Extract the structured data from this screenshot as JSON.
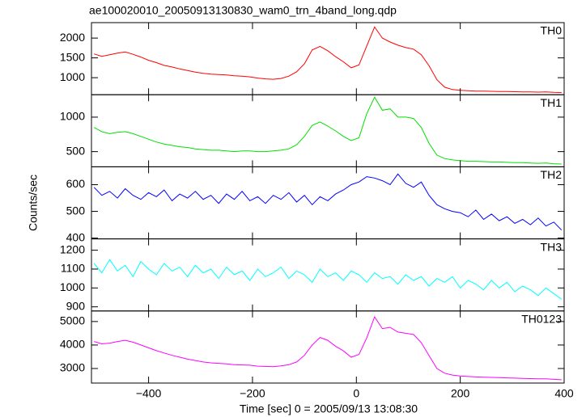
{
  "chart_data": {
    "type": "line",
    "title": "ae100020010_20050913130830_wam0_trn_4band_long.qdp",
    "xlabel": "Time [sec] 0 = 2005/09/13 13:08:30",
    "ylabel": "Counts/sec",
    "xlim": [
      -510,
      400
    ],
    "xticks": [
      {
        "value": -400,
        "label": "−400"
      },
      {
        "value": -200,
        "label": "−200"
      },
      0,
      200,
      400
    ],
    "x": [
      -505,
      -490,
      -475,
      -460,
      -445,
      -430,
      -415,
      -400,
      -385,
      -370,
      -355,
      -340,
      -325,
      -310,
      -295,
      -280,
      -265,
      -250,
      -235,
      -220,
      -205,
      -190,
      -175,
      -160,
      -145,
      -130,
      -115,
      -100,
      -85,
      -70,
      -55,
      -40,
      -25,
      -10,
      5,
      20,
      35,
      50,
      65,
      80,
      95,
      110,
      125,
      140,
      155,
      170,
      185,
      200,
      215,
      230,
      245,
      260,
      275,
      290,
      305,
      320,
      335,
      350,
      365,
      380,
      395
    ],
    "series": [
      {
        "name": "TH0",
        "color": "#ff0000",
        "ylim": [
          570,
          2390
        ],
        "yticks": [
          1000,
          1500,
          2000
        ],
        "values": [
          1600,
          1540,
          1580,
          1620,
          1650,
          1590,
          1520,
          1440,
          1380,
          1310,
          1270,
          1220,
          1180,
          1140,
          1110,
          1090,
          1080,
          1070,
          1050,
          1040,
          1020,
          990,
          970,
          960,
          980,
          1040,
          1150,
          1350,
          1700,
          1790,
          1680,
          1530,
          1400,
          1250,
          1320,
          1800,
          2280,
          2000,
          1900,
          1820,
          1760,
          1720,
          1580,
          1300,
          950,
          760,
          700,
          680,
          670,
          660,
          660,
          655,
          650,
          650,
          645,
          640,
          640,
          635,
          640,
          630,
          625
        ]
      },
      {
        "name": "TH1",
        "color": "#00e000",
        "ylim": [
          280,
          1325
        ],
        "yticks": [
          500,
          1000
        ],
        "values": [
          850,
          790,
          760,
          780,
          790,
          760,
          720,
          680,
          640,
          610,
          590,
          570,
          560,
          540,
          530,
          520,
          520,
          510,
          500,
          510,
          510,
          500,
          500,
          510,
          520,
          540,
          600,
          720,
          880,
          930,
          870,
          800,
          720,
          660,
          700,
          1050,
          1290,
          1100,
          1120,
          1000,
          1000,
          980,
          850,
          620,
          450,
          400,
          380,
          370,
          360,
          360,
          355,
          350,
          350,
          345,
          340,
          340,
          335,
          330,
          335,
          325,
          320
        ]
      },
      {
        "name": "TH2",
        "color": "#0000ff",
        "ylim": [
          397,
          667
        ],
        "yticks": [
          400,
          500,
          600
        ],
        "values": [
          590,
          560,
          575,
          550,
          585,
          560,
          545,
          570,
          555,
          580,
          540,
          565,
          550,
          575,
          545,
          560,
          530,
          565,
          545,
          575,
          540,
          555,
          530,
          560,
          545,
          570,
          535,
          560,
          525,
          555,
          540,
          565,
          580,
          600,
          610,
          630,
          625,
          615,
          600,
          640,
          605,
          590,
          610,
          560,
          525,
          510,
          500,
          495,
          480,
          505,
          470,
          490,
          465,
          480,
          455,
          470,
          450,
          475,
          445,
          460,
          430
        ]
      },
      {
        "name": "TH3",
        "color": "#00ffff",
        "ylim": [
          878,
          1260
        ],
        "yticks": [
          900,
          1000,
          1100,
          1200
        ],
        "values": [
          1130,
          1080,
          1150,
          1090,
          1120,
          1060,
          1140,
          1100,
          1070,
          1130,
          1090,
          1110,
          1060,
          1120,
          1080,
          1100,
          1050,
          1110,
          1070,
          1090,
          1040,
          1100,
          1060,
          1080,
          1110,
          1050,
          1090,
          1070,
          1030,
          1100,
          1060,
          1080,
          1040,
          1090,
          1070,
          1030,
          1080,
          1050,
          1060,
          1020,
          1070,
          1040,
          1060,
          1010,
          1050,
          1030,
          1060,
          1000,
          1040,
          1020,
          990,
          1040,
          1000,
          1030,
          980,
          1010,
          990,
          960,
          1000,
          970,
          940
        ]
      },
      {
        "name": "TH0123",
        "color": "#ff00ff",
        "ylim": [
          2380,
          5450
        ],
        "yticks": [
          3000,
          4000,
          5000
        ],
        "values": [
          4150,
          4050,
          4080,
          4150,
          4200,
          4120,
          4000,
          3880,
          3760,
          3660,
          3560,
          3480,
          3400,
          3340,
          3280,
          3240,
          3220,
          3200,
          3160,
          3150,
          3140,
          3100,
          3090,
          3080,
          3110,
          3160,
          3280,
          3560,
          4000,
          4320,
          4200,
          3950,
          3750,
          3480,
          3600,
          4300,
          5200,
          4700,
          4750,
          4550,
          4500,
          4450,
          4100,
          3550,
          3000,
          2800,
          2720,
          2680,
          2660,
          2640,
          2630,
          2620,
          2610,
          2600,
          2590,
          2580,
          2570,
          2560,
          2560,
          2540,
          2520
        ]
      }
    ]
  }
}
